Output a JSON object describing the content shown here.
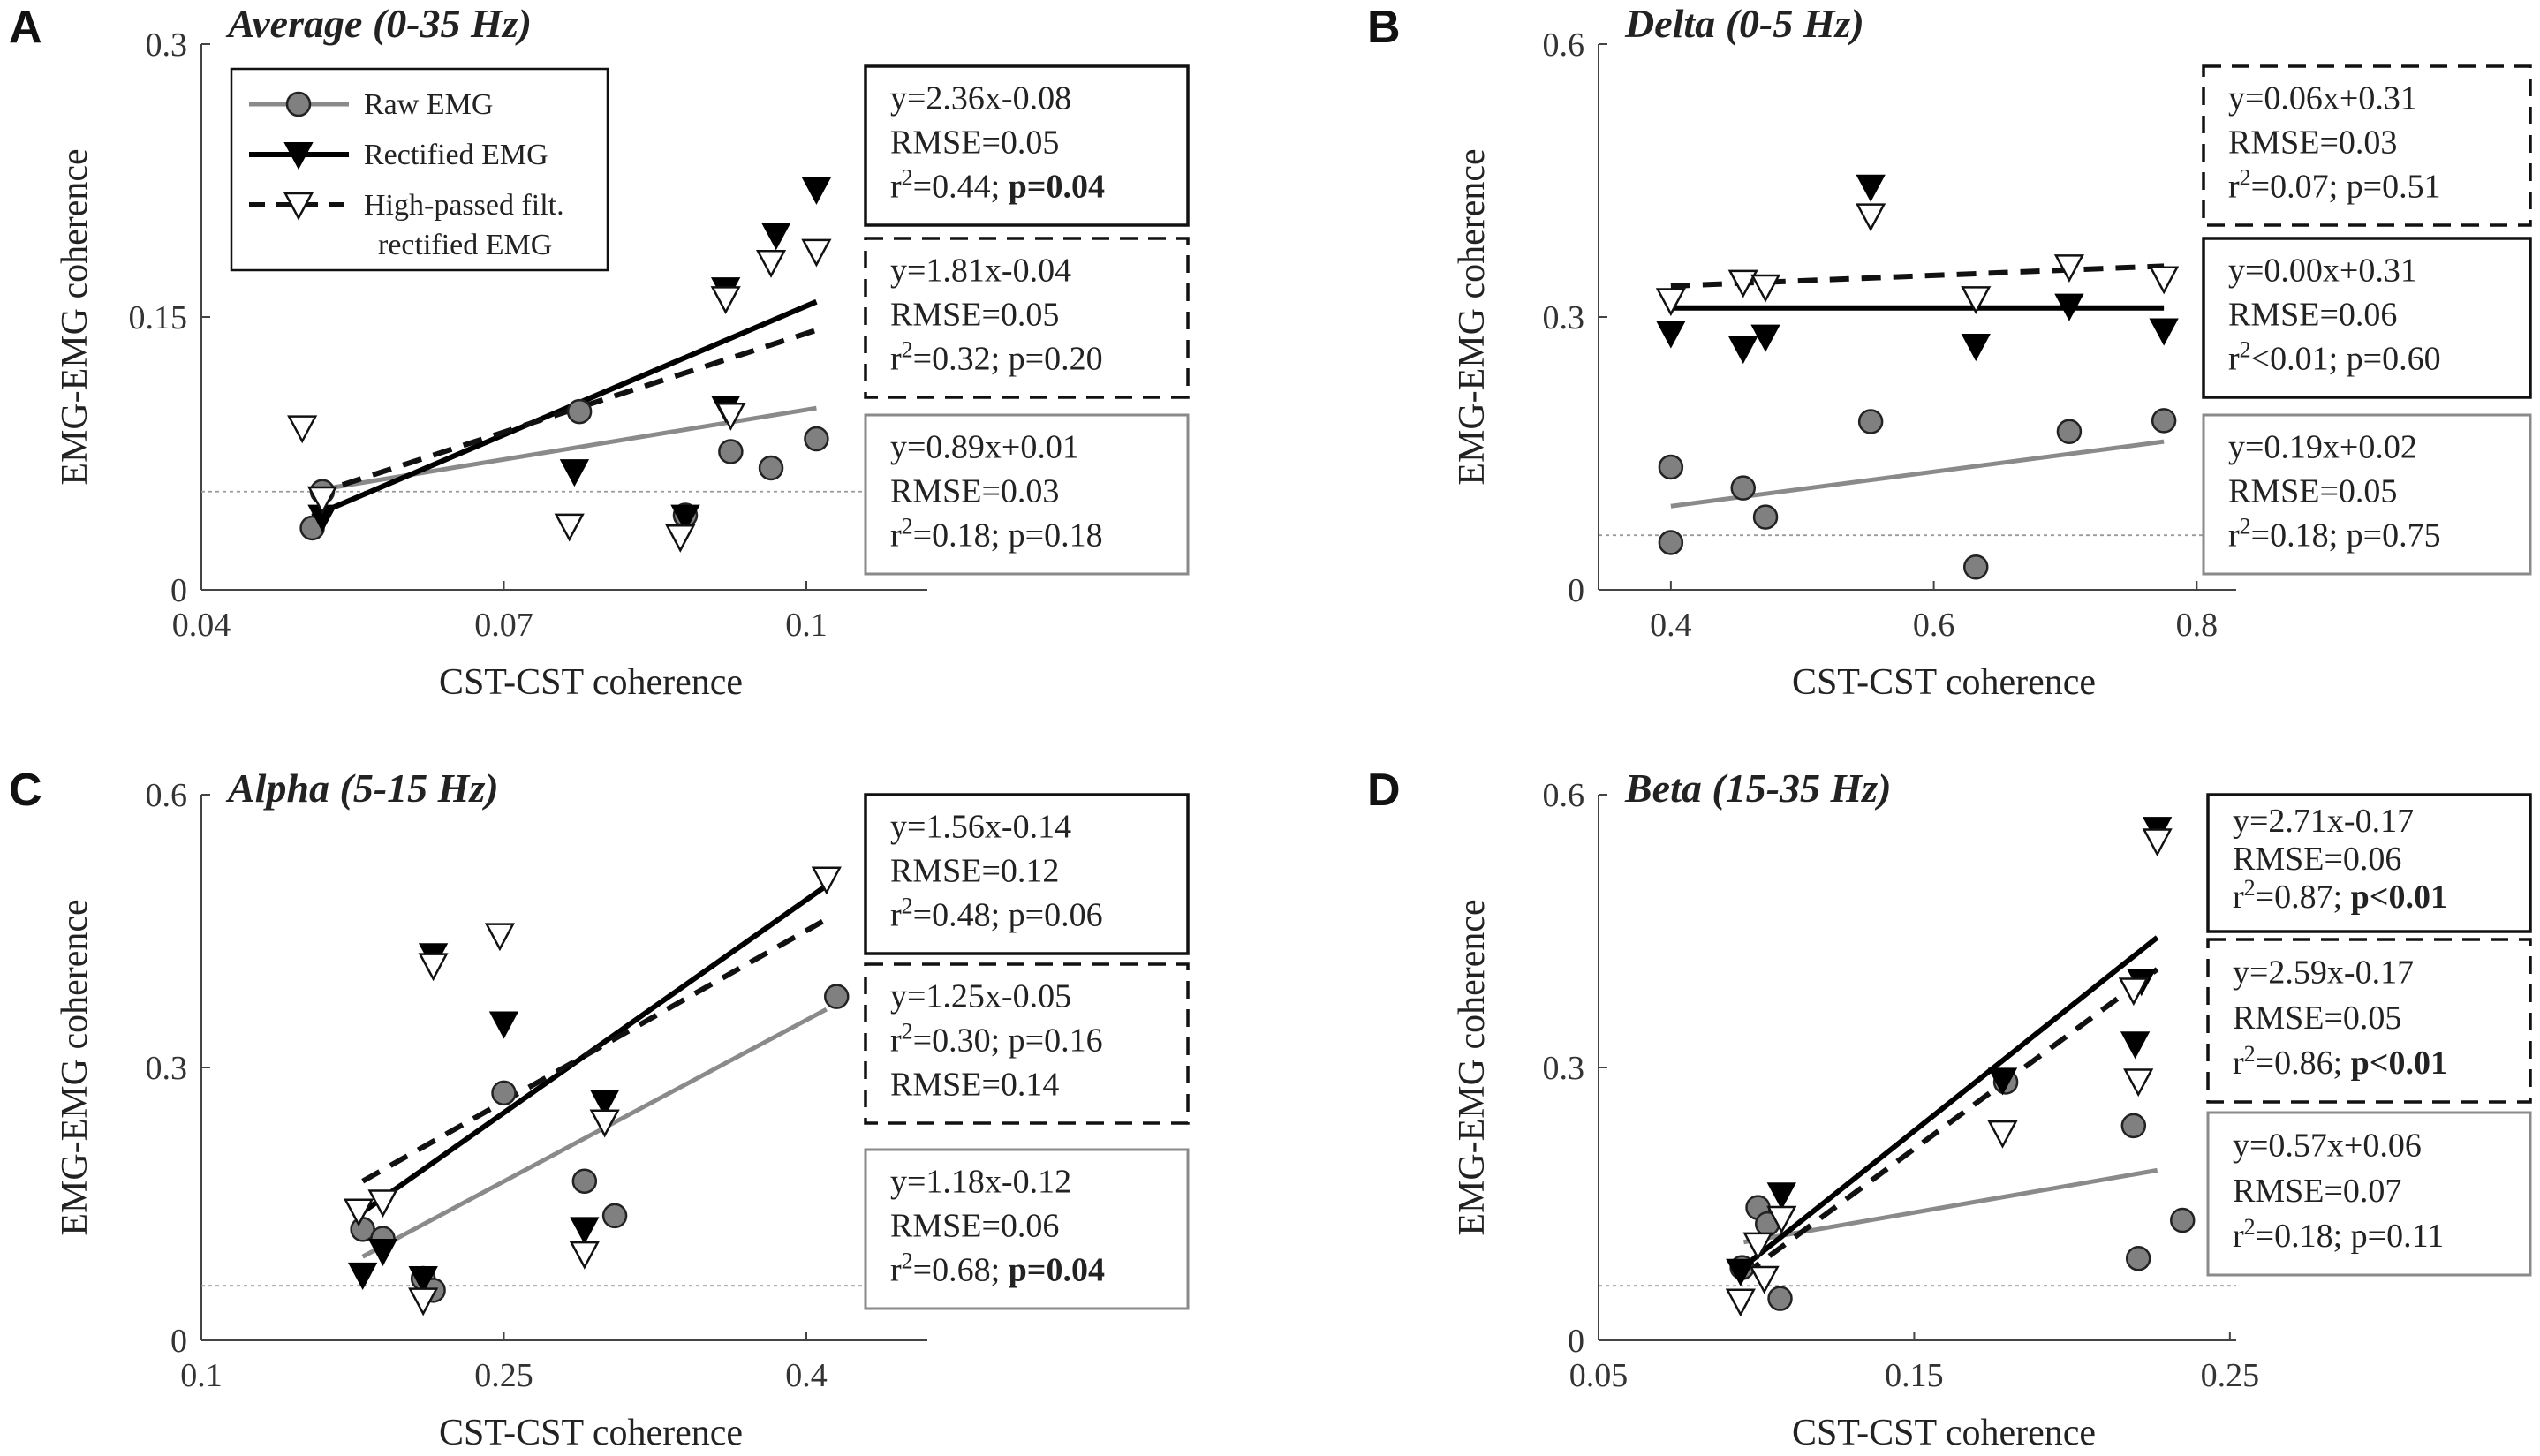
{
  "colors": {
    "raw": "#8a8a8a",
    "rect": "#000000",
    "hp": "#111111",
    "ref": "#9a9a9a",
    "marker_fill": "#808080"
  },
  "legend": {
    "raw": "Raw EMG",
    "rect": "Rectified EMG",
    "hp_line1": "High-passed filt.",
    "hp_line2": "rectified EMG"
  },
  "chart_data": [
    {
      "label": "A",
      "title": "Average (0-35 Hz)",
      "type": "scatter",
      "xlabel": "CST-CST coherence",
      "ylabel": "EMG-EMG coherence",
      "xlim": [
        0.04,
        0.112
      ],
      "ylim": [
        0,
        0.3
      ],
      "xticks": [
        {
          "v": 0.04,
          "t": "0.04"
        },
        {
          "v": 0.07,
          "t": "0.07"
        },
        {
          "v": 0.1,
          "t": "0.1"
        }
      ],
      "yticks": [
        {
          "v": 0,
          "t": "0"
        },
        {
          "v": 0.15,
          "t": "0.15"
        },
        {
          "v": 0.3,
          "t": "0.3"
        }
      ],
      "ref_line": 0.054,
      "series": [
        {
          "name": "Raw EMG",
          "key": "raw",
          "x": [
            0.051,
            0.052,
            0.0775,
            0.0925,
            0.0965,
            0.101,
            0.088
          ],
          "y": [
            0.034,
            0.054,
            0.098,
            0.076,
            0.067,
            0.083,
            0.041
          ],
          "fit": {
            "x": [
              0.051,
              0.101
            ],
            "y": [
              0.0544,
              0.0999
            ]
          }
        },
        {
          "name": "Rectified EMG",
          "key": "rect",
          "x": [
            0.052,
            0.077,
            0.088,
            0.092,
            0.092,
            0.097,
            0.101
          ],
          "y": [
            0.04,
            0.065,
            0.04,
            0.165,
            0.1,
            0.195,
            0.22
          ],
          "fit": {
            "x": [
              0.051,
              0.101
            ],
            "y": [
              0.0404,
              0.1584
            ]
          }
        },
        {
          "name": "High-passed filt. rectified EMG",
          "key": "hp",
          "x": [
            0.05,
            0.052,
            0.0765,
            0.0875,
            0.092,
            0.0925,
            0.0965,
            0.101
          ],
          "y": [
            0.089,
            0.05,
            0.035,
            0.029,
            0.16,
            0.096,
            0.18,
            0.186
          ],
          "fit": {
            "x": [
              0.051,
              0.101
            ],
            "y": [
              0.0523,
              0.1428
            ]
          }
        }
      ],
      "boxes": [
        {
          "key": "rect",
          "lines": [
            "y=2.36x-0.08",
            "RMSE=0.05",
            "r²=0.44; ",
            "p=0.04"
          ],
          "bold_p": true
        },
        {
          "key": "hp",
          "lines": [
            "y=1.81x-0.04",
            "RMSE=0.05",
            "r²=0.32; ",
            "p=0.20"
          ],
          "bold_p": false
        },
        {
          "key": "raw",
          "lines": [
            "y=0.89x+0.01",
            "RMSE=0.03",
            "r²=0.18; ",
            "p=0.18"
          ],
          "bold_p": false
        }
      ]
    },
    {
      "label": "B",
      "title": "Delta (0-5 Hz)",
      "type": "scatter",
      "xlabel": "CST-CST coherence",
      "ylabel": "EMG-EMG coherence",
      "xlim": [
        0.345,
        0.83
      ],
      "ylim": [
        0,
        0.6
      ],
      "xticks": [
        {
          "v": 0.4,
          "t": "0.4"
        },
        {
          "v": 0.6,
          "t": "0.6"
        },
        {
          "v": 0.8,
          "t": "0.8"
        }
      ],
      "yticks": [
        {
          "v": 0,
          "t": "0"
        },
        {
          "v": 0.3,
          "t": "0.3"
        },
        {
          "v": 0.6,
          "t": "0.6"
        }
      ],
      "ref_line": 0.06,
      "series": [
        {
          "name": "Raw EMG",
          "key": "raw",
          "x": [
            0.4,
            0.4,
            0.455,
            0.472,
            0.552,
            0.632,
            0.703,
            0.775
          ],
          "y": [
            0.135,
            0.052,
            0.112,
            0.08,
            0.185,
            0.025,
            0.174,
            0.186
          ],
          "fit": {
            "x": [
              0.4,
              0.775
            ],
            "y": [
              0.092,
              0.163
            ]
          }
        },
        {
          "name": "Rectified EMG",
          "key": "rect",
          "x": [
            0.4,
            0.455,
            0.472,
            0.552,
            0.632,
            0.703,
            0.775
          ],
          "y": [
            0.282,
            0.265,
            0.278,
            0.443,
            0.268,
            0.312,
            0.285
          ],
          "fit": {
            "x": [
              0.4,
              0.775
            ],
            "y": [
              0.31,
              0.31
            ]
          }
        },
        {
          "name": "High-passed filt. rectified EMG",
          "key": "hp",
          "x": [
            0.4,
            0.455,
            0.472,
            0.552,
            0.632,
            0.703,
            0.775
          ],
          "y": [
            0.318,
            0.338,
            0.333,
            0.411,
            0.32,
            0.355,
            0.342
          ],
          "fit": {
            "x": [
              0.4,
              0.775
            ],
            "y": [
              0.334,
              0.356
            ]
          }
        }
      ],
      "boxes": [
        {
          "key": "hp",
          "lines": [
            "y=0.06x+0.31",
            "RMSE=0.03",
            "r²=0.07; ",
            "p=0.51"
          ],
          "bold_p": false
        },
        {
          "key": "rect",
          "lines": [
            "y=0.00x+0.31",
            "RMSE=0.06",
            "r²<0.01; ",
            "p=0.60"
          ],
          "bold_p": false
        },
        {
          "key": "raw",
          "lines": [
            "y=0.19x+0.02",
            "RMSE=0.05",
            "r²=0.18; ",
            "p=0.75"
          ],
          "bold_p": false
        }
      ]
    },
    {
      "label": "C",
      "title": "Alpha (5-15 Hz)",
      "type": "scatter",
      "xlabel": "CST-CST coherence",
      "ylabel": "EMG-EMG coherence",
      "xlim": [
        0.1,
        0.46
      ],
      "ylim": [
        0,
        0.6
      ],
      "xticks": [
        {
          "v": 0.1,
          "t": "0.1"
        },
        {
          "v": 0.25,
          "t": "0.25"
        },
        {
          "v": 0.4,
          "t": "0.4"
        }
      ],
      "yticks": [
        {
          "v": 0,
          "t": "0"
        },
        {
          "v": 0.3,
          "t": "0.3"
        },
        {
          "v": 0.6,
          "t": "0.6"
        }
      ],
      "ref_line": 0.06,
      "series": [
        {
          "name": "Raw EMG",
          "key": "raw",
          "x": [
            0.18,
            0.19,
            0.21,
            0.215,
            0.25,
            0.29,
            0.305,
            0.415
          ],
          "y": [
            0.122,
            0.112,
            0.068,
            0.055,
            0.272,
            0.175,
            0.137,
            0.378
          ],
          "fit": {
            "x": [
              0.18,
              0.41
            ],
            "y": [
              0.092,
              0.364
            ]
          }
        },
        {
          "name": "Rectified EMG",
          "key": "rect",
          "x": [
            0.18,
            0.19,
            0.21,
            0.215,
            0.25,
            0.29,
            0.3
          ],
          "y": [
            0.072,
            0.098,
            0.068,
            0.423,
            0.348,
            0.122,
            0.262
          ],
          "fit": {
            "x": [
              0.18,
              0.41
            ],
            "y": [
              0.141,
              0.5
            ]
          }
        },
        {
          "name": "High-passed filt. rectified EMG",
          "key": "hp",
          "x": [
            0.178,
            0.19,
            0.21,
            0.215,
            0.248,
            0.29,
            0.3,
            0.41
          ],
          "y": [
            0.142,
            0.152,
            0.044,
            0.412,
            0.445,
            0.095,
            0.24,
            0.507
          ],
          "fit": {
            "x": [
              0.18,
              0.41
            ],
            "y": [
              0.175,
              0.463
            ]
          }
        }
      ],
      "boxes": [
        {
          "key": "rect",
          "lines": [
            "y=1.56x-0.14",
            "RMSE=0.12",
            "r²=0.48; ",
            "p=0.06"
          ],
          "bold_p": false
        },
        {
          "key": "hp",
          "lines": [
            "y=1.25x-0.05",
            "r²=0.30; ",
            "p=0.16",
            "RMSE=0.14"
          ],
          "bold_p": false,
          "order": "r2-second"
        },
        {
          "key": "raw",
          "lines": [
            "y=1.18x-0.12",
            "RMSE=0.06",
            "r²=0.68; ",
            "p=0.04"
          ],
          "bold_p": true
        }
      ]
    },
    {
      "label": "D",
      "title": "Beta (15-35 Hz)",
      "type": "scatter",
      "xlabel": "CST-CST coherence",
      "ylabel": "EMG-EMG coherence",
      "xlim": [
        0.05,
        0.252
      ],
      "ylim": [
        0,
        0.6
      ],
      "xticks": [
        {
          "v": 0.05,
          "t": "0.05"
        },
        {
          "v": 0.15,
          "t": "0.15"
        },
        {
          "v": 0.25,
          "t": "0.25"
        }
      ],
      "yticks": [
        {
          "v": 0,
          "t": "0"
        },
        {
          "v": 0.3,
          "t": "0.3"
        },
        {
          "v": 0.6,
          "t": "0.6"
        }
      ],
      "ref_line": 0.06,
      "series": [
        {
          "name": "Raw EMG",
          "key": "raw",
          "x": [
            0.0955,
            0.1005,
            0.1035,
            0.1075,
            0.179,
            0.2195,
            0.221,
            0.235
          ],
          "y": [
            0.08,
            0.146,
            0.128,
            0.046,
            0.284,
            0.236,
            0.09,
            0.132
          ],
          "fit": {
            "x": [
              0.096,
              0.227
            ],
            "y": [
              0.108,
              0.187
            ]
          }
        },
        {
          "name": "Rectified EMG",
          "key": "rect",
          "x": [
            0.095,
            0.108,
            0.178,
            0.22,
            0.222,
            0.227
          ],
          "y": [
            0.076,
            0.16,
            0.286,
            0.326,
            0.395,
            0.562
          ],
          "fit": {
            "x": [
              0.096,
              0.227
            ],
            "y": [
              0.081,
              0.443
            ]
          }
        },
        {
          "name": "High-passed filt. rectified EMG",
          "key": "hp",
          "x": [
            0.095,
            0.1005,
            0.1025,
            0.108,
            0.178,
            0.2195,
            0.221,
            0.227
          ],
          "y": [
            0.043,
            0.105,
            0.068,
            0.134,
            0.228,
            0.385,
            0.285,
            0.549
          ],
          "fit": {
            "x": [
              0.096,
              0.227
            ],
            "y": [
              0.072,
              0.408
            ]
          }
        }
      ],
      "boxes": [
        {
          "key": "rect",
          "lines": [
            "y=2.71x-0.17",
            "RMSE=0.06",
            "r²=0.87; ",
            "p<0.01"
          ],
          "bold_p": true
        },
        {
          "key": "hp",
          "lines": [
            "y=2.59x-0.17",
            "RMSE=0.05",
            "r²=0.86; ",
            "p<0.01"
          ],
          "bold_p": true
        },
        {
          "key": "raw",
          "lines": [
            "y=0.57x+0.06",
            "RMSE=0.07",
            "r²=0.18; ",
            "p=0.11"
          ],
          "bold_p": false
        }
      ]
    }
  ]
}
